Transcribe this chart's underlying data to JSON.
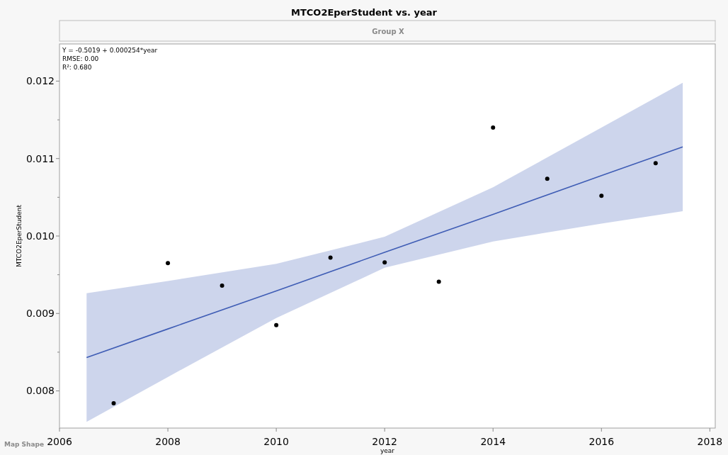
{
  "chart_data": {
    "type": "scatter",
    "title": "MTCO2EperStudent vs. year",
    "xlabel": "year",
    "ylabel": "MTCO2EperStudent",
    "annotations": [
      "Y = -0.5019 + 0.000254*year",
      "RMSE: 0.00",
      "R²: 0.680",
      "Group X",
      "Map Shape"
    ],
    "xlim": [
      2006,
      2018.1
    ],
    "xticks": [
      2006,
      2008,
      2010,
      2012,
      2014,
      2016,
      2018
    ],
    "ylim": [
      0.00752,
      0.01248
    ],
    "yticks": [
      0.008,
      {
        "value": 0.0085,
        "label": null
      },
      0.009,
      {
        "value": 0.0095,
        "label": null
      },
      {
        "value": 0.01,
        "label": "0.010"
      },
      {
        "value": 0.0105,
        "label": null
      },
      0.011,
      {
        "value": 0.0115,
        "label": null
      },
      0.012
    ],
    "grid": false,
    "marker": "circle",
    "series": [
      {
        "type": "line",
        "marker": "none",
        "color": "#3f5db5",
        "x": [
          2006.5,
          2008,
          2010,
          2012,
          2014,
          2016,
          2017.5
        ],
        "values": [
          0.00843,
          0.0088,
          0.00929,
          0.00979,
          0.01028,
          0.01078,
          0.01115
        ],
        "lower": [
          0.0076,
          0.00818,
          0.00894,
          0.00959,
          0.00993,
          0.01016,
          0.01032
        ],
        "upper": [
          0.00926,
          0.00942,
          0.00964,
          0.00999,
          0.01063,
          0.0114,
          0.01198
        ]
      },
      {
        "color": "#000000",
        "x": [
          2007,
          2008,
          2009,
          2010,
          2011,
          2012,
          2013,
          2014,
          2015,
          2016,
          2017
        ],
        "values": [
          0.00784,
          0.00965,
          0.00936,
          0.00885,
          0.00972,
          0.00966,
          0.00941,
          0.0114,
          0.01074,
          0.01052,
          0.01094
        ]
      }
    ]
  }
}
